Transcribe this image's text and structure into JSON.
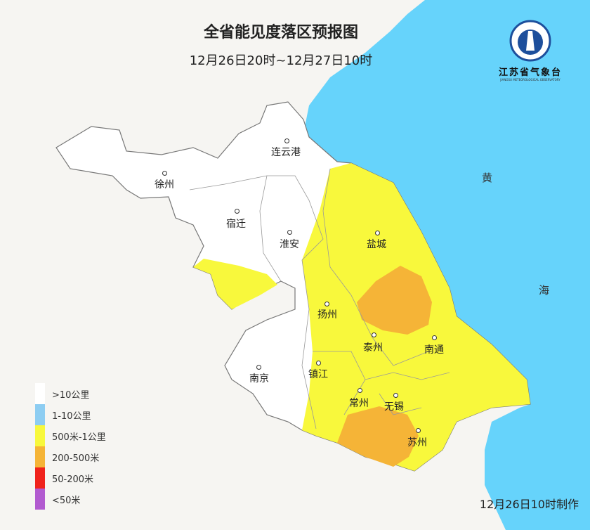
{
  "title": "全省能见度落区预报图",
  "subtitle": "12月26日20时~12月27日10时",
  "logo": {
    "name": "江苏省气象台",
    "english": "JIANGSU METEOROLOGICAL OBSERVATORY"
  },
  "sea_labels": [
    "黄",
    "海"
  ],
  "cities": [
    {
      "name": "连云港"
    },
    {
      "name": "徐州"
    },
    {
      "name": "宿迁"
    },
    {
      "name": "淮安"
    },
    {
      "name": "盐城"
    },
    {
      "name": "扬州"
    },
    {
      "name": "泰州"
    },
    {
      "name": "南通"
    },
    {
      "name": "南京"
    },
    {
      "name": "镇江"
    },
    {
      "name": "常州"
    },
    {
      "name": "无锡"
    },
    {
      "name": "苏州"
    }
  ],
  "legend": [
    {
      "label": ">10公里",
      "color": "#ffffff"
    },
    {
      "label": "1-10公里",
      "color": "#8dcdf2"
    },
    {
      "label": "500米-1公里",
      "color": "#f8f83c"
    },
    {
      "label": "200-500米",
      "color": "#f5b437"
    },
    {
      "label": "50-200米",
      "color": "#f0231c"
    },
    {
      "label": "<50米",
      "color": "#b25bd0"
    }
  ],
  "footer": "12月26日10时制作",
  "colors": {
    "sea": "#66d3fb",
    "land": "#f6f5f2"
  }
}
